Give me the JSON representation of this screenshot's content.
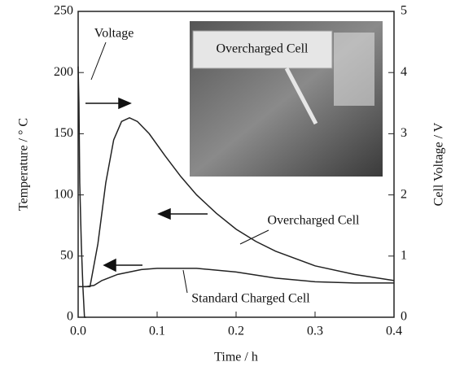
{
  "chart_data": {
    "type": "line",
    "x_label": "Time / h",
    "y_label": "Temperature / ° C",
    "y2_label": "Cell Voltage / V",
    "xlim": [
      0,
      0.4
    ],
    "xticks": [
      {
        "value": 0,
        "label": "0.0"
      },
      0.1,
      0.2,
      0.3,
      0.4
    ],
    "ylim": [
      0,
      250
    ],
    "yticks": [
      0,
      50,
      100,
      150,
      200,
      250
    ],
    "y2lim": [
      0,
      5
    ],
    "y2ticks": [
      0,
      1,
      2,
      3,
      4,
      5
    ],
    "inset_label": "Overcharged Cell",
    "series": [
      {
        "name": "Overcharged Cell",
        "color": "#222222",
        "x": [
          0.008,
          0.015,
          0.025,
          0.035,
          0.045,
          0.055,
          0.065,
          0.075,
          0.09,
          0.11,
          0.13,
          0.15,
          0.175,
          0.2,
          0.225,
          0.25,
          0.3,
          0.35,
          0.4
        ],
        "values": [
          25,
          25,
          60,
          110,
          145,
          160,
          163,
          160,
          150,
          132,
          115,
          100,
          85,
          72,
          62,
          54,
          42,
          35,
          30
        ]
      },
      {
        "name": "Standard Charged Cell",
        "color": "#222222",
        "x": [
          0,
          0.01,
          0.02,
          0.03,
          0.05,
          0.08,
          0.1,
          0.15,
          0.2,
          0.25,
          0.3,
          0.35,
          0.4
        ],
        "values": [
          25,
          25,
          26,
          30,
          35,
          39,
          40,
          40,
          37,
          32,
          29,
          28,
          28
        ]
      },
      {
        "name": "Voltage",
        "color": "#222222",
        "axis": "y2",
        "x": [
          0,
          0.001,
          0.002,
          0.004,
          0.006,
          0.008,
          0.01
        ],
        "values": [
          4.1,
          3.5,
          2.2,
          1.2,
          0.5,
          0,
          0
        ]
      }
    ]
  }
}
